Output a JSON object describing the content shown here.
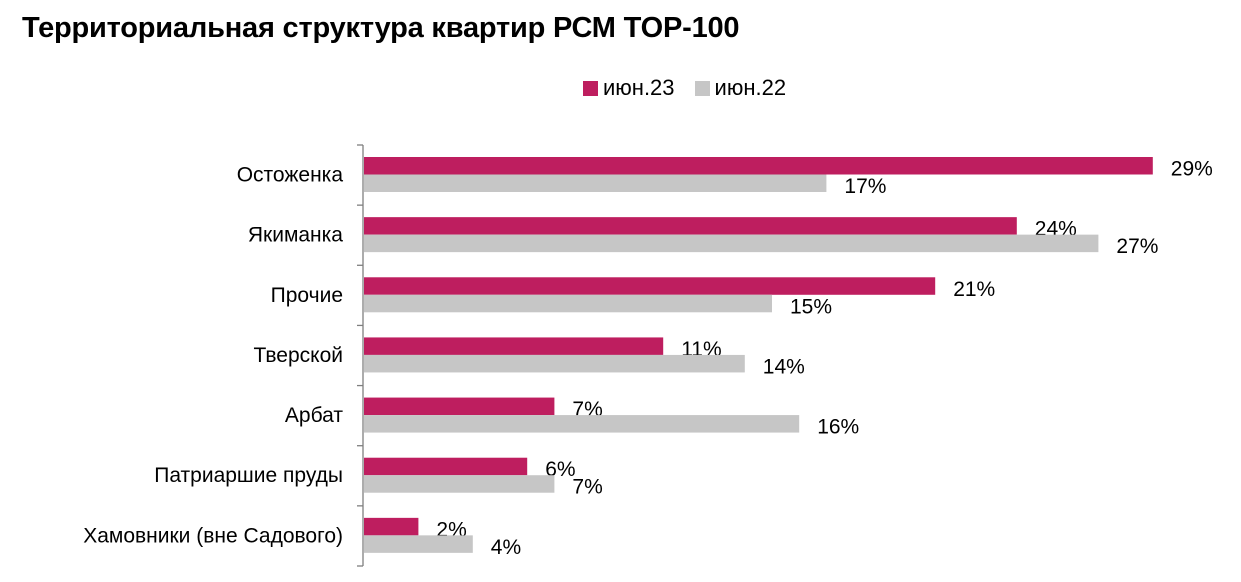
{
  "colors": {
    "series_1": "#BE1E5F",
    "series_2": "#C6C6C6",
    "axis": "#7F7F7F",
    "text": "#000000"
  },
  "chart_data": {
    "type": "bar",
    "orientation": "horizontal",
    "title": "Территориальная структура квартир РСМ TOP-100",
    "categories": [
      "Остоженка",
      "Якиманка",
      "Прочие",
      "Тверской",
      "Арбат",
      "Патриаршие пруды",
      "Хамовники (вне Садового)"
    ],
    "series": [
      {
        "name": "июн.23",
        "values": [
          29,
          24,
          21,
          11,
          7,
          6,
          2
        ],
        "labels": [
          "29%",
          "24%",
          "21%",
          "11%",
          "7%",
          "6%",
          "2%"
        ]
      },
      {
        "name": "июн.22",
        "values": [
          17,
          27,
          15,
          14,
          16,
          7,
          4
        ],
        "labels": [
          "17%",
          "27%",
          "15%",
          "14%",
          "16%",
          "7%",
          "4%"
        ]
      }
    ],
    "xlim": [
      0,
      30
    ],
    "grid": false,
    "legend_position": "top"
  }
}
